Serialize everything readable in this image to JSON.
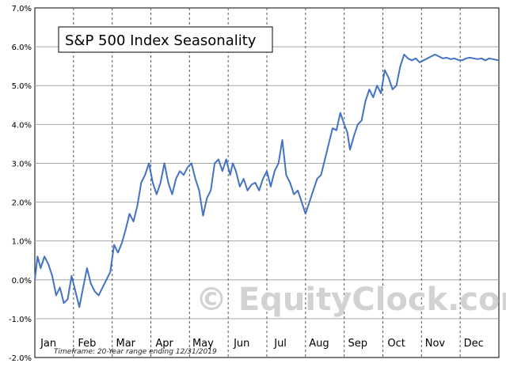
{
  "chart_data": {
    "type": "line",
    "title": "S&P 500 Index Seasonality",
    "footnote": "Timeframe: 20-Year range ending 12/31/2019",
    "watermark": "© EquityClock.com",
    "ylim": [
      -2.0,
      7.0
    ],
    "y_ticks": [
      "-2.0%",
      "-1.0%",
      "0.0%",
      "1.0%",
      "2.0%",
      "3.0%",
      "4.0%",
      "5.0%",
      "6.0%",
      "7.0%"
    ],
    "y_tick_values": [
      -2,
      -1,
      0,
      1,
      2,
      3,
      4,
      5,
      6,
      7
    ],
    "months": [
      "Jan",
      "Feb",
      "Mar",
      "Apr",
      "May",
      "Jun",
      "Jul",
      "Aug",
      "Sep",
      "Oct",
      "Nov",
      "Dec"
    ],
    "grid": "horizontal solid, vertical dashed at month boundaries",
    "line_color": "#4472c4",
    "series": [
      {
        "x": [
          0,
          0.07,
          0.15,
          0.25,
          0.35,
          0.45,
          0.55,
          0.65,
          0.75,
          0.85,
          0.95,
          1.05,
          1.15,
          1.25,
          1.35,
          1.45,
          1.55,
          1.65,
          1.75,
          1.85,
          1.95,
          2.05,
          2.15,
          2.25,
          2.35,
          2.45,
          2.55,
          2.65,
          2.75,
          2.85,
          2.95,
          3.05,
          3.15,
          3.25,
          3.35,
          3.45,
          3.55,
          3.65,
          3.75,
          3.85,
          3.95,
          4.05,
          4.15,
          4.25,
          4.35,
          4.45,
          4.55,
          4.65,
          4.75,
          4.85,
          4.95,
          5.05,
          5.12,
          5.2,
          5.3,
          5.4,
          5.5,
          5.6,
          5.7,
          5.8,
          5.9,
          6.0,
          6.1,
          6.2,
          6.3,
          6.4,
          6.5,
          6.6,
          6.7,
          6.8,
          6.9,
          7.0,
          7.1,
          7.2,
          7.3,
          7.4,
          7.5,
          7.6,
          7.7,
          7.8,
          7.9,
          8.0,
          8.08,
          8.15,
          8.25,
          8.35,
          8.45,
          8.55,
          8.65,
          8.75,
          8.85,
          8.95,
          9.05,
          9.15,
          9.25,
          9.35,
          9.45,
          9.55,
          9.65,
          9.75,
          9.85,
          9.95,
          10.05,
          10.15,
          10.25,
          10.35,
          10.45,
          10.55,
          10.65,
          10.75,
          10.85,
          10.95,
          11.05,
          11.15,
          11.25,
          11.35,
          11.45,
          11.55,
          11.65,
          11.75,
          11.85,
          11.95,
          12.0
        ],
        "values": [
          0.0,
          0.6,
          0.3,
          0.6,
          0.4,
          0.1,
          -0.4,
          -0.2,
          -0.6,
          -0.5,
          0.1,
          -0.3,
          -0.7,
          -0.2,
          0.3,
          -0.1,
          -0.3,
          -0.4,
          -0.2,
          0.0,
          0.2,
          0.9,
          0.7,
          0.95,
          1.3,
          1.7,
          1.5,
          1.9,
          2.5,
          2.7,
          3.0,
          2.5,
          2.2,
          2.5,
          3.0,
          2.5,
          2.2,
          2.6,
          2.8,
          2.7,
          2.9,
          3.0,
          2.6,
          2.3,
          1.65,
          2.1,
          2.3,
          3.0,
          3.1,
          2.8,
          3.1,
          2.7,
          3.0,
          2.8,
          2.4,
          2.6,
          2.3,
          2.45,
          2.5,
          2.3,
          2.6,
          2.8,
          2.4,
          2.8,
          3.0,
          3.6,
          2.7,
          2.5,
          2.2,
          2.3,
          2.0,
          1.7,
          2.0,
          2.3,
          2.6,
          2.7,
          3.1,
          3.5,
          3.9,
          3.85,
          4.3,
          4.0,
          3.8,
          3.35,
          3.7,
          4.0,
          4.1,
          4.6,
          4.9,
          4.7,
          5.0,
          4.8,
          5.4,
          5.2,
          4.9,
          5.0,
          5.5,
          5.8,
          5.7,
          5.65,
          5.7,
          5.6,
          5.65,
          5.7,
          5.75,
          5.8,
          5.75,
          5.7,
          5.72,
          5.68,
          5.7,
          5.66,
          5.65,
          5.7,
          5.72,
          5.7,
          5.68,
          5.7,
          5.65,
          5.7,
          5.68,
          5.66,
          5.65
        ]
      }
    ]
  }
}
